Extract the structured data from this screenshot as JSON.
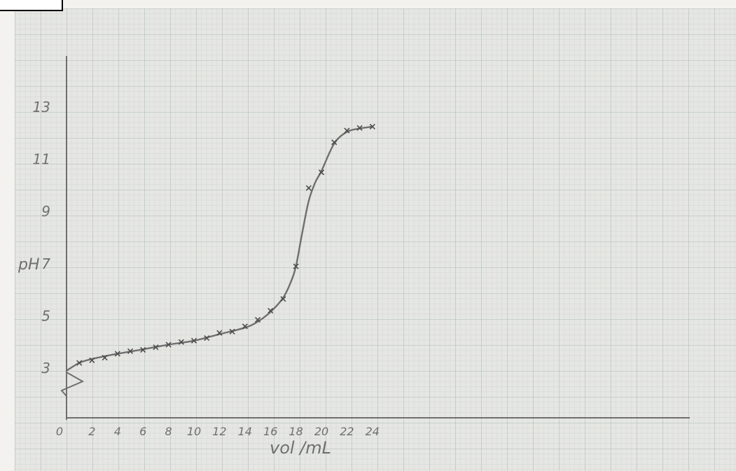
{
  "colors": {
    "paper": "#e6e6e2",
    "paper_margin": "#f3f2ee",
    "grid_minor": "#c9d4d4",
    "grid_major": "#aab9ba",
    "pencil": "#6f6f6f",
    "pencil_dark": "#4c4c4c"
  },
  "chart_data": {
    "type": "line",
    "xlabel": "vol /mL",
    "ylabel": "pH",
    "xlim": [
      0,
      24
    ],
    "x_ticks": [
      "0",
      "2",
      "4",
      "6",
      "8",
      "10",
      "12",
      "14",
      "16",
      "18",
      "20",
      "22",
      "24"
    ],
    "y_ticks": [
      "3",
      "5",
      "7",
      "9",
      "11",
      "13"
    ],
    "grid": true,
    "axis_break": true,
    "series": [
      {
        "marker": "x",
        "points": [
          {
            "x": 1,
            "y": 3.2
          },
          {
            "x": 2,
            "y": 3.3
          },
          {
            "x": 3,
            "y": 3.4
          },
          {
            "x": 4,
            "y": 3.55
          },
          {
            "x": 5,
            "y": 3.65
          },
          {
            "x": 6,
            "y": 3.7
          },
          {
            "x": 7,
            "y": 3.8
          },
          {
            "x": 8,
            "y": 3.9
          },
          {
            "x": 9,
            "y": 4.0
          },
          {
            "x": 10,
            "y": 4.05
          },
          {
            "x": 11,
            "y": 4.15
          },
          {
            "x": 12,
            "y": 4.35
          },
          {
            "x": 13,
            "y": 4.4
          },
          {
            "x": 14,
            "y": 4.6
          },
          {
            "x": 15,
            "y": 4.85
          },
          {
            "x": 16,
            "y": 5.2
          },
          {
            "x": 17,
            "y": 5.65
          },
          {
            "x": 18,
            "y": 6.9
          },
          {
            "x": 19,
            "y": 9.9
          },
          {
            "x": 20,
            "y": 10.5
          },
          {
            "x": 21,
            "y": 11.65
          },
          {
            "x": 22,
            "y": 12.1
          },
          {
            "x": 23,
            "y": 12.2
          },
          {
            "x": 24,
            "y": 12.25
          }
        ],
        "curve": [
          {
            "x": 0,
            "y": 2.9
          },
          {
            "x": 1,
            "y": 3.2
          },
          {
            "x": 2,
            "y": 3.35
          },
          {
            "x": 4,
            "y": 3.55
          },
          {
            "x": 6,
            "y": 3.72
          },
          {
            "x": 8,
            "y": 3.9
          },
          {
            "x": 10,
            "y": 4.05
          },
          {
            "x": 12,
            "y": 4.3
          },
          {
            "x": 14,
            "y": 4.55
          },
          {
            "x": 15,
            "y": 4.78
          },
          {
            "x": 16,
            "y": 5.15
          },
          {
            "x": 17,
            "y": 5.7
          },
          {
            "x": 17.6,
            "y": 6.3
          },
          {
            "x": 18,
            "y": 6.9
          },
          {
            "x": 18.5,
            "y": 8.2
          },
          {
            "x": 19,
            "y": 9.4
          },
          {
            "x": 19.5,
            "y": 10.1
          },
          {
            "x": 20,
            "y": 10.55
          },
          {
            "x": 21,
            "y": 11.6
          },
          {
            "x": 22,
            "y": 12.05
          },
          {
            "x": 23,
            "y": 12.18
          },
          {
            "x": 24,
            "y": 12.25
          }
        ]
      }
    ]
  }
}
